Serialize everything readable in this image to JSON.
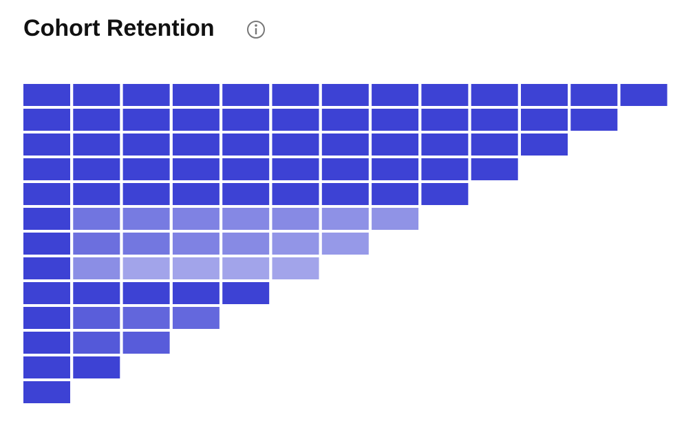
{
  "chart_data": {
    "type": "heatmap",
    "title": "Cohort Retention",
    "color": "#3d42d4",
    "vlim": [
      0,
      100
    ],
    "rows": [
      [
        100,
        100,
        100,
        100,
        100,
        100,
        100,
        100,
        100,
        100,
        100,
        100,
        100
      ],
      [
        100,
        100,
        100,
        100,
        100,
        100,
        100,
        100,
        100,
        100,
        100,
        100
      ],
      [
        100,
        100,
        100,
        100,
        100,
        100,
        100,
        100,
        100,
        100,
        100
      ],
      [
        100,
        100,
        100,
        100,
        100,
        100,
        100,
        100,
        100,
        100
      ],
      [
        100,
        100,
        100,
        100,
        100,
        100,
        100,
        100,
        100
      ],
      [
        100,
        73,
        70,
        66,
        63,
        62,
        58,
        57
      ],
      [
        100,
        76,
        72,
        66,
        62,
        56,
        54
      ],
      [
        100,
        60,
        48,
        48,
        48,
        48
      ],
      [
        100,
        100,
        100,
        100,
        100
      ],
      [
        100,
        85,
        81,
        80
      ],
      [
        100,
        88,
        86
      ],
      [
        100,
        100
      ],
      [
        100
      ]
    ]
  }
}
